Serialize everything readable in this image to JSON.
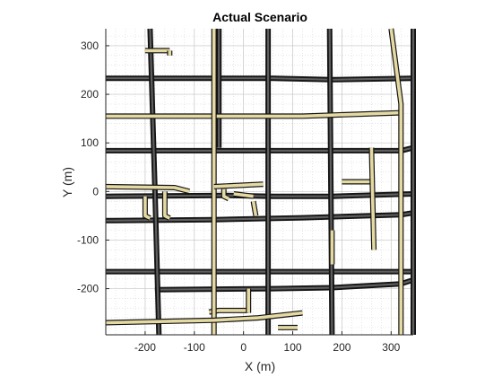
{
  "chart_data": {
    "type": "line",
    "title": "Actual Scenario",
    "xlabel": "X (m)",
    "ylabel": "Y (m)",
    "xlim": [
      -280,
      345
    ],
    "ylim": [
      -295,
      335
    ],
    "xticks": [
      -200,
      -100,
      0,
      100,
      200,
      300
    ],
    "yticks": [
      -200,
      -100,
      0,
      100,
      200,
      300
    ],
    "xtick_labels": [
      "-200",
      "-100",
      "0",
      "100",
      "200",
      "300"
    ],
    "ytick_labels": [
      "-200",
      "-100",
      "0",
      "100",
      "200",
      "300"
    ],
    "grid": true,
    "minor_grid": true,
    "colors": {
      "road_outline": "#141414",
      "road_surface": "#5f5f5f",
      "highlight_surface": "#e4d9a2",
      "grid": "#d6d6d6",
      "axes": "#262626"
    },
    "series": [
      {
        "kind": "road",
        "highlight": false,
        "x": [
          -280,
          -40,
          60,
          180,
          345
        ],
        "y": [
          -10,
          -8,
          -10,
          -10,
          -5
        ]
      },
      {
        "kind": "road",
        "highlight": false,
        "x": [
          -280,
          -60,
          60,
          180,
          345
        ],
        "y": [
          233,
          233,
          233,
          230,
          233
        ]
      },
      {
        "kind": "road",
        "highlight": false,
        "x": [
          -280,
          320,
          345
        ],
        "y": [
          84,
          84,
          90
        ]
      },
      {
        "kind": "road",
        "highlight": false,
        "x": [
          -280,
          -60,
          120,
          320,
          345
        ],
        "y": [
          -60,
          -58,
          -54,
          -48,
          -44
        ]
      },
      {
        "kind": "road",
        "highlight": false,
        "x": [
          -180,
          60,
          180,
          320,
          345
        ],
        "y": [
          -202,
          -200,
          -198,
          -190,
          -182
        ]
      },
      {
        "kind": "road",
        "highlight": false,
        "x": [
          -280,
          345
        ],
        "y": [
          -165,
          -165
        ]
      },
      {
        "kind": "road",
        "highlight": false,
        "x": [
          -190,
          -180,
          -172
        ],
        "y": [
          335,
          0,
          -295
        ]
      },
      {
        "kind": "road",
        "highlight": false,
        "x": [
          -50,
          -50
        ],
        "y": [
          335,
          90
        ]
      },
      {
        "kind": "road",
        "highlight": false,
        "x": [
          50,
          50
        ],
        "y": [
          335,
          -295
        ]
      },
      {
        "kind": "road",
        "highlight": false,
        "x": [
          175,
          180
        ],
        "y": [
          335,
          -295
        ]
      },
      {
        "kind": "road",
        "highlight": false,
        "x": [
          345,
          345
        ],
        "y": [
          335,
          -295
        ]
      },
      {
        "kind": "road",
        "highlight": true,
        "x": [
          -280,
          60,
          120,
          320
        ],
        "y": [
          155,
          155,
          155,
          162
        ]
      },
      {
        "kind": "road",
        "highlight": true,
        "x": [
          -280,
          -140,
          -110
        ],
        "y": [
          10,
          8,
          0
        ]
      },
      {
        "kind": "road",
        "highlight": true,
        "x": [
          -70,
          -50,
          -30,
          10
        ],
        "y": [
          -248,
          -245,
          -245,
          -245
        ]
      },
      {
        "kind": "road",
        "highlight": true,
        "x": [
          -60,
          -60
        ],
        "y": [
          335,
          -295
        ]
      },
      {
        "kind": "road",
        "highlight": true,
        "x": [
          -280,
          -60,
          30,
          120
        ],
        "y": [
          -270,
          -265,
          -260,
          -250
        ]
      },
      {
        "kind": "road",
        "highlight": true,
        "x": [
          -20,
          20
        ],
        "y": [
          -5,
          -10
        ]
      },
      {
        "kind": "road",
        "highlight": true,
        "x": [
          -60,
          40
        ],
        "y": [
          10,
          15
        ]
      },
      {
        "kind": "road",
        "highlight": true,
        "x": [
          -40,
          -40,
          -30
        ],
        "y": [
          5,
          -10,
          -15
        ]
      },
      {
        "kind": "road",
        "highlight": true,
        "x": [
          -200,
          -150
        ],
        "y": [
          290,
          290
        ]
      },
      {
        "kind": "road",
        "highlight": true,
        "x": [
          -150,
          -150
        ],
        "y": [
          290,
          280
        ]
      },
      {
        "kind": "road",
        "highlight": true,
        "x": [
          -160,
          -160,
          -150
        ],
        "y": [
          0,
          -50,
          -55
        ]
      },
      {
        "kind": "road",
        "highlight": true,
        "x": [
          -200,
          -200,
          -190
        ],
        "y": [
          -10,
          -50,
          -55
        ]
      },
      {
        "kind": "road",
        "highlight": true,
        "x": [
          20,
          25
        ],
        "y": [
          -20,
          -50
        ]
      },
      {
        "kind": "road",
        "highlight": true,
        "x": [
          200,
          260
        ],
        "y": [
          20,
          20
        ]
      },
      {
        "kind": "road",
        "highlight": true,
        "x": [
          260,
          265
        ],
        "y": [
          90,
          -120
        ]
      },
      {
        "kind": "road",
        "highlight": true,
        "x": [
          180,
          180
        ],
        "y": [
          -80,
          -150
        ]
      },
      {
        "kind": "road",
        "highlight": true,
        "x": [
          10,
          10
        ],
        "y": [
          -200,
          -250
        ]
      },
      {
        "kind": "road",
        "highlight": true,
        "x": [
          70,
          110
        ],
        "y": [
          -280,
          -280
        ]
      },
      {
        "kind": "road",
        "highlight": true,
        "x": [
          300,
          320,
          320
        ],
        "y": [
          335,
          180,
          -295
        ]
      }
    ]
  }
}
